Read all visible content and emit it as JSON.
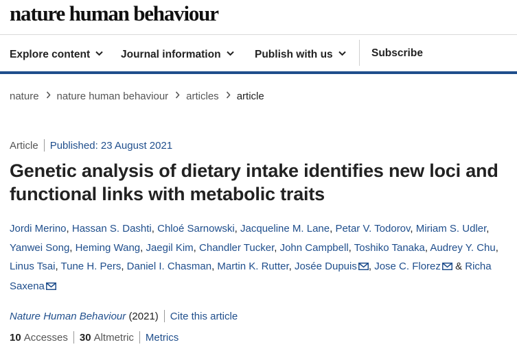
{
  "brand": "nature human behaviour",
  "nav": {
    "items": [
      {
        "label": "Explore content"
      },
      {
        "label": "Journal information"
      },
      {
        "label": "Publish with us"
      }
    ],
    "subscribe": "Subscribe"
  },
  "breadcrumb": [
    "nature",
    "nature human behaviour",
    "articles",
    "article"
  ],
  "article": {
    "type": "Article",
    "published": "Published: 23 August 2021",
    "title": "Genetic analysis of dietary intake identifies new loci and functional links with metabolic traits",
    "authors": [
      "Jordi Merino",
      "Hassan S. Dashti",
      "Chloé Sarnowski",
      "Jacqueline M. Lane",
      "Petar V. Todorov",
      "Miriam S. Udler",
      "Yanwei Song",
      "Heming Wang",
      "Jaegil Kim",
      "Chandler Tucker",
      "John Campbell",
      "Toshiko Tanaka",
      "Audrey Y. Chu",
      "Linus Tsai",
      "Tune H. Pers",
      "Daniel I. Chasman",
      "Martin K. Rutter",
      "Josée Dupuis",
      "Jose C. Florez",
      "Richa Saxena"
    ],
    "and_text": "&",
    "journal": "Nature Human Behaviour",
    "year": "(2021)",
    "cite_link": "Cite this article",
    "accesses_count": "10",
    "accesses_label": "Accesses",
    "altmetric_count": "30",
    "altmetric_label": "Altmetric",
    "metrics_link": "Metrics"
  },
  "colors": {
    "accent": "#1f4e8c",
    "text": "#222222",
    "muted": "#555555"
  }
}
